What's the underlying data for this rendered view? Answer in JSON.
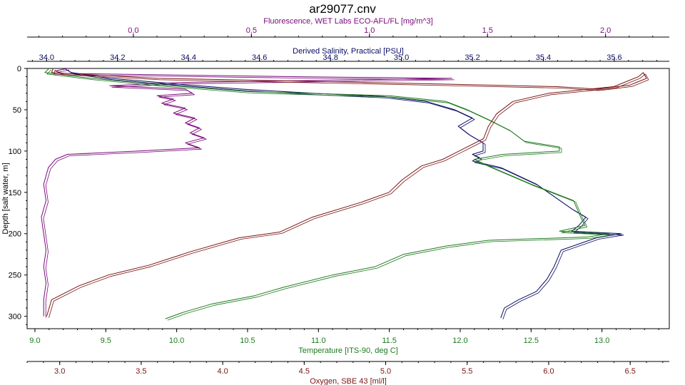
{
  "window": {
    "title": "ar29077.cnv"
  },
  "colors": {
    "salinity": "#0a0a64",
    "fluorescence": "#7a0a7a",
    "temperature": "#1e7a1e",
    "oxygen": "#7a1414",
    "depth": "#000000"
  },
  "chart_data": {
    "type": "line",
    "title": "ar29077.cnv",
    "orientation": "depth profile (y axis = depth, increasing downward)",
    "y_axis": {
      "label": "Depth [salt water, m]",
      "range": [
        0,
        315
      ],
      "inverted": true,
      "ticks": [
        "0",
        "50",
        "100",
        "150",
        "200",
        "250",
        "300"
      ],
      "tick_values": [
        0,
        50,
        100,
        150,
        200,
        250,
        300
      ]
    },
    "x_axes": [
      {
        "id": "fluorescence",
        "label": "Fluorescence, WET Labs ECO-AFL/FL [mg/m^3]",
        "position": "top",
        "range": [
          -0.45,
          2.27
        ],
        "ticks": [
          "0.0",
          "0.5",
          "1.0",
          "1.5",
          "2.0"
        ],
        "tick_values": [
          0,
          0.5,
          1.0,
          1.5,
          2.0
        ]
      },
      {
        "id": "salinity",
        "label": "Derived Salinity, Practical [PSU]",
        "position": "top",
        "range": [
          33.945,
          35.755
        ],
        "ticks": [
          "34.0",
          "34.2",
          "34.4",
          "34.6",
          "34.8",
          "35.0",
          "35.2",
          "35.4",
          "35.6"
        ],
        "tick_values": [
          34.0,
          34.2,
          34.4,
          34.6,
          34.8,
          35.0,
          35.2,
          35.4,
          35.6
        ]
      },
      {
        "id": "temperature",
        "label": "Temperature [ITS-90, deg C]",
        "position": "bottom",
        "range": [
          8.945,
          13.475
        ],
        "ticks": [
          "9.0",
          "9.5",
          "10.0",
          "10.5",
          "11.0",
          "11.5",
          "12.0",
          "12.5",
          "13.0"
        ],
        "tick_values": [
          9.0,
          9.5,
          10.0,
          10.5,
          11.0,
          11.5,
          12.0,
          12.5,
          13.0
        ]
      },
      {
        "id": "oxygen",
        "label": "Oxygen, SBE 43 [ml/l]",
        "position": "bottom",
        "range": [
          2.8,
          6.74
        ],
        "ticks": [
          "3.0",
          "3.5",
          "4.0",
          "4.5",
          "5.0",
          "5.5",
          "6.0",
          "6.5"
        ],
        "tick_values": [
          3.0,
          3.5,
          4.0,
          4.5,
          5.0,
          5.5,
          6.0,
          6.5
        ]
      }
    ],
    "series": [
      {
        "name": "Fluorescence, WET Labs ECO-AFL/FL [mg/m^3]",
        "axis": "fluorescence",
        "points": [
          [
            -0.28,
            0
          ],
          [
            -0.33,
            3
          ],
          [
            -0.3,
            6
          ],
          [
            0.7,
            10
          ],
          [
            1.35,
            12
          ],
          [
            0.2,
            17
          ],
          [
            -0.1,
            21
          ],
          [
            0.22,
            25
          ],
          [
            0.25,
            30
          ],
          [
            0.1,
            33
          ],
          [
            0.17,
            37
          ],
          [
            0.12,
            42
          ],
          [
            0.22,
            48
          ],
          [
            0.17,
            54
          ],
          [
            0.26,
            60
          ],
          [
            0.22,
            66
          ],
          [
            0.28,
            72
          ],
          [
            0.24,
            78
          ],
          [
            0.3,
            84
          ],
          [
            0.22,
            90
          ],
          [
            0.28,
            96
          ],
          [
            0.02,
            100
          ],
          [
            -0.28,
            104
          ],
          [
            -0.33,
            110
          ],
          [
            -0.36,
            120
          ],
          [
            -0.38,
            140
          ],
          [
            -0.37,
            160
          ],
          [
            -0.39,
            180
          ],
          [
            -0.38,
            200
          ],
          [
            -0.37,
            220
          ],
          [
            -0.38,
            240
          ],
          [
            -0.37,
            260
          ],
          [
            -0.38,
            280
          ],
          [
            -0.38,
            300
          ]
        ]
      },
      {
        "name": "Derived Salinity, Practical [PSU]",
        "axis": "salinity",
        "points": [
          [
            34.05,
            0
          ],
          [
            34.07,
            5
          ],
          [
            34.18,
            12
          ],
          [
            34.4,
            20
          ],
          [
            34.55,
            25
          ],
          [
            34.75,
            30
          ],
          [
            34.95,
            34
          ],
          [
            35.07,
            40
          ],
          [
            35.15,
            50
          ],
          [
            35.2,
            60
          ],
          [
            35.16,
            70
          ],
          [
            35.19,
            80
          ],
          [
            35.23,
            90
          ],
          [
            35.23,
            100
          ],
          [
            35.2,
            104
          ],
          [
            35.22,
            108
          ],
          [
            35.2,
            112
          ],
          [
            35.28,
            120
          ],
          [
            35.38,
            140
          ],
          [
            35.48,
            170
          ],
          [
            35.52,
            180
          ],
          [
            35.5,
            190
          ],
          [
            35.48,
            197
          ],
          [
            35.62,
            200
          ],
          [
            35.55,
            205
          ],
          [
            35.45,
            220
          ],
          [
            35.43,
            240
          ],
          [
            35.41,
            255
          ],
          [
            35.38,
            270
          ],
          [
            35.33,
            280
          ],
          [
            35.29,
            290
          ],
          [
            35.28,
            302
          ]
        ]
      },
      {
        "name": "Temperature [ITS-90, deg C]",
        "axis": "temperature",
        "points": [
          [
            9.1,
            0
          ],
          [
            9.07,
            5
          ],
          [
            9.4,
            12
          ],
          [
            9.9,
            20
          ],
          [
            10.5,
            28
          ],
          [
            11.5,
            33
          ],
          [
            11.9,
            40
          ],
          [
            12.05,
            50
          ],
          [
            12.2,
            62
          ],
          [
            12.35,
            75
          ],
          [
            12.45,
            88
          ],
          [
            12.7,
            95
          ],
          [
            12.7,
            100
          ],
          [
            12.3,
            104
          ],
          [
            12.1,
            110
          ],
          [
            12.2,
            118
          ],
          [
            12.5,
            140
          ],
          [
            12.8,
            160
          ],
          [
            12.85,
            180
          ],
          [
            12.88,
            190
          ],
          [
            12.7,
            197
          ],
          [
            13.05,
            200
          ],
          [
            12.9,
            204
          ],
          [
            12.2,
            208
          ],
          [
            11.9,
            215
          ],
          [
            11.6,
            225
          ],
          [
            11.4,
            240
          ],
          [
            11.1,
            250
          ],
          [
            10.75,
            265
          ],
          [
            10.55,
            275
          ],
          [
            10.25,
            285
          ],
          [
            10.05,
            295
          ],
          [
            9.92,
            303
          ]
        ]
      },
      {
        "name": "Oxygen, SBE 43 [ml/l]",
        "axis": "oxygen",
        "points": [
          [
            2.96,
            0
          ],
          [
            2.95,
            5
          ],
          [
            3.6,
            12
          ],
          [
            4.9,
            17
          ],
          [
            6.05,
            22
          ],
          [
            6.3,
            25
          ],
          [
            6.5,
            20
          ],
          [
            6.6,
            12
          ],
          [
            6.58,
            5
          ],
          [
            6.55,
            10
          ],
          [
            6.4,
            22
          ],
          [
            6.0,
            30
          ],
          [
            5.78,
            40
          ],
          [
            5.68,
            55
          ],
          [
            5.63,
            70
          ],
          [
            5.6,
            85
          ],
          [
            5.5,
            95
          ],
          [
            5.42,
            103
          ],
          [
            5.35,
            110
          ],
          [
            5.22,
            118
          ],
          [
            5.1,
            135
          ],
          [
            5.02,
            150
          ],
          [
            4.85,
            162
          ],
          [
            4.55,
            180
          ],
          [
            4.35,
            198
          ],
          [
            4.1,
            205
          ],
          [
            3.8,
            222
          ],
          [
            3.55,
            238
          ],
          [
            3.3,
            250
          ],
          [
            3.12,
            263
          ],
          [
            2.95,
            280
          ],
          [
            2.92,
            300
          ]
        ]
      }
    ]
  }
}
